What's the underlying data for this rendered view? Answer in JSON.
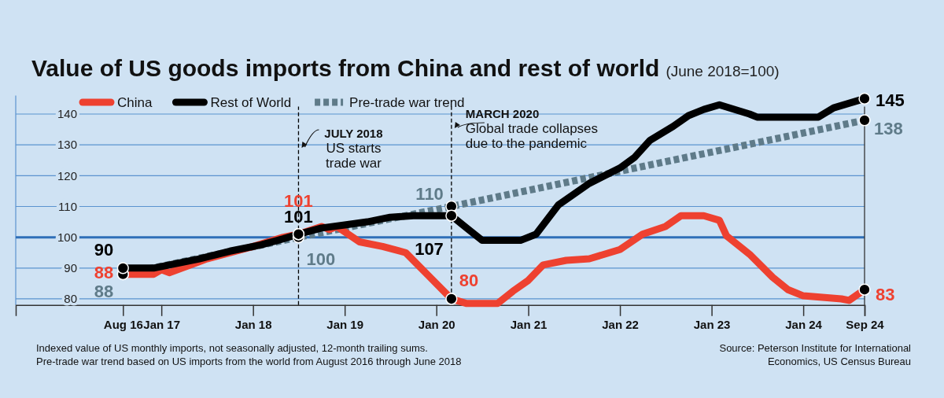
{
  "chart_data": {
    "type": "line",
    "title": "Value of US goods imports from China and rest of world",
    "subtitle": "(June 2018=100)",
    "xlim": [
      "2015-06",
      "2024-09"
    ],
    "xticks": [
      {
        "value": "2016-08",
        "label": "Aug 16"
      },
      {
        "value": "2017-01",
        "label": "Jan 17"
      },
      {
        "value": "2018-01",
        "label": "Jan 18"
      },
      {
        "value": "2019-01",
        "label": "Jan 19"
      },
      {
        "value": "2020-01",
        "label": "Jan 20"
      },
      {
        "value": "2021-01",
        "label": "Jan 21"
      },
      {
        "value": "2022-01",
        "label": "Jan 22"
      },
      {
        "value": "2023-01",
        "label": "Jan 23"
      },
      {
        "value": "2024-01",
        "label": "Jan 24"
      },
      {
        "value": "2024-09",
        "label": "Sep 24"
      }
    ],
    "ylim": [
      78,
      146
    ],
    "yticks": [
      80,
      90,
      100,
      110,
      120,
      130,
      140
    ],
    "grid": "y",
    "legend": "top left",
    "series": [
      {
        "name": "Pre-trade war trend",
        "color": "#5f7b89",
        "line_style": "dotted",
        "marker": "circle",
        "x": [
          "2016-08",
          "2018-07",
          "2020-03",
          "2022-06",
          "2024-09"
        ],
        "values": [
          88,
          100,
          110,
          124,
          138
        ],
        "value_labels": [
          "88",
          "100",
          "110",
          null,
          "138"
        ]
      },
      {
        "name": "China",
        "color": "#ee4130",
        "line_style": "solid",
        "x": [
          "2016-08",
          "2016-12",
          "2017-01",
          "2017-02",
          "2017-07",
          "2018-01",
          "2018-05",
          "2018-07",
          "2018-10",
          "2018-11",
          "2018-12",
          "2019-03",
          "2019-06",
          "2019-09",
          "2019-12",
          "2020-03",
          "2020-05",
          "2020-09",
          "2020-11",
          "2021-01",
          "2021-03",
          "2021-06",
          "2021-09",
          "2022-01",
          "2022-04",
          "2022-07",
          "2022-09",
          "2022-12",
          "2023-02",
          "2023-03",
          "2023-06",
          "2023-09",
          "2023-11",
          "2024-01",
          "2024-06",
          "2024-07",
          "2024-09"
        ],
        "values": [
          88,
          88,
          89.5,
          88.5,
          93,
          97,
          100,
          101,
          103.5,
          102.5,
          103.5,
          98.5,
          97,
          95,
          87.5,
          80,
          78.5,
          78.5,
          82.5,
          86,
          91,
          92.5,
          93,
          96,
          101,
          103.5,
          107,
          107,
          105.5,
          100.5,
          94.5,
          87,
          83,
          81,
          80,
          79.5,
          83
        ],
        "value_labels": [
          "88",
          null,
          null,
          null,
          null,
          null,
          null,
          "101",
          null,
          null,
          null,
          null,
          null,
          null,
          null,
          "80",
          null,
          null,
          null,
          null,
          null,
          null,
          null,
          null,
          null,
          null,
          null,
          null,
          null,
          null,
          null,
          null,
          null,
          null,
          null,
          null,
          "83"
        ]
      },
      {
        "name": "Rest of World",
        "color": "#000000",
        "line_style": "solid",
        "x": [
          "2016-08",
          "2016-12",
          "2017-02",
          "2017-06",
          "2017-10",
          "2018-02",
          "2018-05",
          "2018-07",
          "2018-10",
          "2019-01",
          "2019-04",
          "2019-07",
          "2019-10",
          "2020-01",
          "2020-03",
          "2020-05",
          "2020-07",
          "2020-12",
          "2021-02",
          "2021-05",
          "2021-09",
          "2022-01",
          "2022-03",
          "2022-05",
          "2022-08",
          "2022-10",
          "2022-12",
          "2023-02",
          "2023-06",
          "2023-07",
          "2024-03",
          "2024-05",
          "2024-09"
        ],
        "values": [
          90,
          90,
          91,
          93,
          95.5,
          97.5,
          99.5,
          101,
          103,
          104,
          105,
          106.5,
          107,
          107,
          107,
          103,
          99,
          99,
          101,
          110.5,
          117.5,
          122.5,
          126,
          131.5,
          136,
          139.5,
          141.5,
          143,
          140,
          139,
          139,
          142,
          145
        ],
        "value_labels": [
          "90",
          null,
          null,
          null,
          null,
          null,
          null,
          "101",
          null,
          null,
          null,
          null,
          null,
          null,
          "107",
          null,
          null,
          null,
          null,
          null,
          null,
          null,
          null,
          null,
          null,
          null,
          null,
          null,
          null,
          null,
          null,
          null,
          "145"
        ]
      }
    ],
    "ref_lines": [
      {
        "axis": "y",
        "value": 100,
        "label": null,
        "color": "#2f6fb8",
        "line_style": "solid"
      },
      {
        "axis": "x",
        "value": "2018-07",
        "label": "JULY 2018\nUS starts\ntrade war",
        "color": "#000000",
        "line_style": "dashed"
      },
      {
        "axis": "x",
        "value": "2020-03",
        "label": "MARCH 2020\nGlobal trade collapses\ndue to the pandemic",
        "color": "#000000",
        "line_style": "dashed"
      },
      {
        "axis": "x",
        "value": "2024-09",
        "label": null,
        "color": "#333333",
        "line_style": "solid"
      }
    ],
    "annotations": [
      "Indexed value of US monthly imports, not seasonally adjusted, 12-month trailing sums.",
      "Pre-trade war trend based on US imports from the world from August 2016 through June 2018",
      "Source: Peterson Institute for International Economics, US Census Bureau"
    ]
  }
}
